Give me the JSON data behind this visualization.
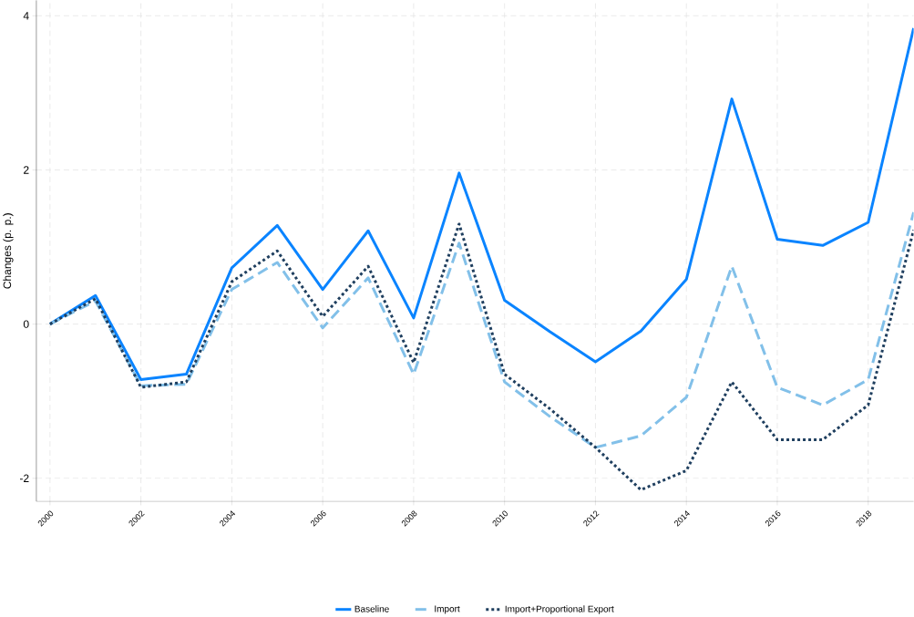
{
  "chart_data": {
    "type": "line",
    "ylabel": "Changes (p. p.)",
    "x": [
      2000,
      2001,
      2002,
      2003,
      2004,
      2005,
      2006,
      2007,
      2008,
      2009,
      2010,
      2011,
      2012,
      2013,
      2014,
      2015,
      2016,
      2017,
      2018,
      2019
    ],
    "series": [
      {
        "name": "Baseline",
        "color": "#0a84ff",
        "line_style": "solid",
        "values": [
          0,
          0.37,
          -0.72,
          -0.65,
          0.73,
          1.28,
          0.45,
          1.21,
          0.08,
          1.96,
          0.31,
          -0.1,
          -0.49,
          -0.09,
          0.58,
          2.92,
          1.1,
          1.02,
          1.32,
          3.84
        ]
      },
      {
        "name": "Import",
        "color": "#82c0e9",
        "line_style": "dashed",
        "values": [
          0,
          0.3,
          -0.8,
          -0.78,
          0.45,
          0.8,
          -0.05,
          0.6,
          -0.65,
          1.05,
          -0.75,
          -1.2,
          -1.6,
          -1.45,
          -0.95,
          0.75,
          -0.82,
          -1.05,
          -0.72,
          1.45
        ]
      },
      {
        "name": "Import+Proportional Export",
        "color": "#1f3f5f",
        "line_style": "dotted",
        "values": [
          0,
          0.33,
          -0.82,
          -0.75,
          0.55,
          0.95,
          0.1,
          0.75,
          -0.5,
          1.3,
          -0.65,
          -1.1,
          -1.6,
          -2.15,
          -1.9,
          -0.75,
          -1.5,
          -1.5,
          -1.05,
          1.22
        ]
      }
    ],
    "xlim": [
      1999.7,
      2019
    ],
    "ylim": [
      -2.3,
      4.2
    ],
    "xticks": [
      2000,
      2002,
      2004,
      2006,
      2008,
      2010,
      2012,
      2014,
      2016,
      2018
    ],
    "yticks": [
      -2,
      0,
      2,
      4
    ],
    "grid": true,
    "legend": "bottom",
    "marker": "none"
  }
}
